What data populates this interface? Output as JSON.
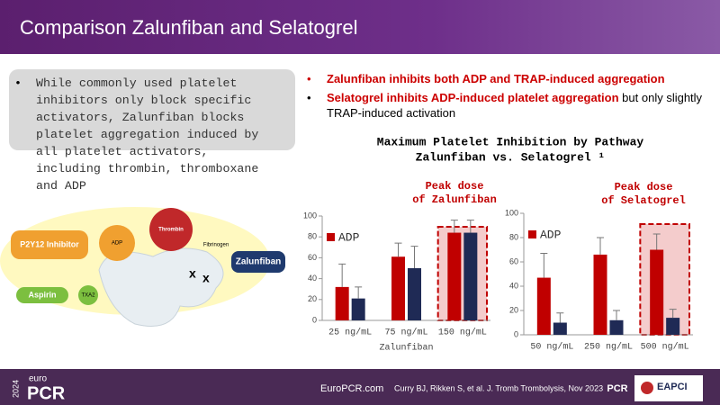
{
  "header": {
    "title": "Comparison Zalunfiban and Selatogrel"
  },
  "left_box": {
    "lines": [
      "While commonly used platelet",
      "inhibitors only block specific",
      "activators, Zalunfiban blocks",
      "platelet aggregation induced by",
      "all platelet activators,",
      "including thrombin, thromboxane",
      "and ADP"
    ]
  },
  "bullets": [
    {
      "bold": "Zalunfiban inhibits both ADP and TRAP-induced aggregation"
    },
    {
      "bold": "Selatogrel inhibits ADP-induced platelet aggregation",
      "text": " but only slightly TRAP-induced activation"
    }
  ],
  "figure_title": [
    "Maximum Platelet Inhibition by Pathway",
    "Zalunfiban vs. Selatogrel ¹"
  ],
  "diagram": {
    "labels": [
      "P2Y12 Inhibitor",
      "ADP",
      "Thrombin",
      "Fibrinogen",
      "Zalunfiban",
      "Aspirin",
      "TXA2"
    ]
  },
  "chart_data": [
    {
      "type": "bar",
      "annotation": [
        "Peak dose",
        "of Zalunfiban"
      ],
      "xlabel": "Zalunfiban",
      "categories": [
        "25 ng/mL",
        "75 ng/mL",
        "150 ng/mL"
      ],
      "series": [
        {
          "name": "ADP",
          "color": "#c00000",
          "values": [
            32,
            61,
            84
          ],
          "errors": [
            22,
            13,
            12
          ]
        },
        {
          "color": "#1f2a55",
          "values": [
            21,
            50,
            84
          ],
          "errors": [
            11,
            21,
            12
          ]
        }
      ],
      "ylim": [
        0,
        100
      ],
      "yticks": [
        0,
        20,
        40,
        60,
        80,
        100
      ]
    },
    {
      "type": "bar",
      "annotation": [
        "Peak dose",
        "of Selatogrel"
      ],
      "categories": [
        "50 ng/mL",
        "250 ng/mL",
        "500 ng/mL"
      ],
      "series": [
        {
          "name": "ADP",
          "color": "#c00000",
          "values": [
            47,
            66,
            70
          ],
          "errors": [
            20,
            14,
            13
          ]
        },
        {
          "color": "#1f2a55",
          "values": [
            10,
            12,
            14
          ],
          "errors": [
            8,
            8,
            7
          ]
        }
      ],
      "ylim": [
        0,
        100
      ],
      "yticks": [
        0,
        20,
        40,
        60,
        80,
        100
      ]
    }
  ],
  "footer": {
    "year": "2024",
    "logo_top": "euro",
    "logo": "PCR",
    "site": "EuroPCR.com",
    "citation": "Curry BJ, Rikken S, et al. J. Tromb Trombolysis, Nov 2023",
    "pcr": "PCR",
    "eapci": "EAPCI"
  }
}
